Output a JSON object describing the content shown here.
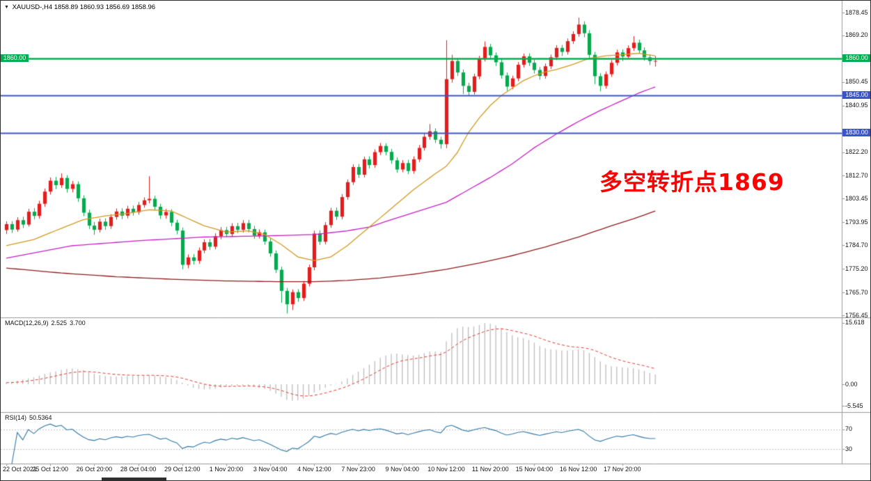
{
  "title_bar": {
    "dropdown_icon": "▼",
    "symbol_period": "XAUUSD-,H4",
    "ohlc": "1858.89 1860.93 1856.69 1858.96"
  },
  "annotation": {
    "text": "多空转折点1869",
    "color": "#ff0000"
  },
  "price_axis": {
    "labels": [
      "1878.45",
      "1869.20",
      "1850.45",
      "1840.95",
      "1822.20",
      "1812.70",
      "1803.45",
      "1793.95",
      "1784.70",
      "1775.20",
      "1765.70",
      "1756.45"
    ]
  },
  "time_axis": {
    "labels": [
      "22 Oct 2021",
      "25 Oct 12:00",
      "26 Oct 20:00",
      "28 Oct 04:00",
      "29 Oct 12:00",
      "1 Nov 20:00",
      "3 Nov 04:00",
      "4 Nov 12:00",
      "7 Nov 23:00",
      "9 Nov 04:00",
      "10 Nov 12:00",
      "11 Nov 20:00",
      "15 Nov 04:00",
      "16 Nov 12:00",
      "17 Nov 20:00"
    ],
    "candles_per_label": 8
  },
  "horizontal_lines": [
    {
      "price": 1860.0,
      "label": "1860.00",
      "color": "#00b050",
      "lw": 2.4,
      "left_badge": true
    },
    {
      "price": 1845.0,
      "label": "1845.00",
      "color": "#3b54c8",
      "lw": 1.8,
      "left_badge": false
    },
    {
      "price": 1830.0,
      "label": "1830.00",
      "color": "#3b54c8",
      "lw": 1.8,
      "left_badge": false
    }
  ],
  "indicators": {
    "macd": {
      "label": "MACD(12,26,9)",
      "value_main": "2.525",
      "value_signal": "3.700",
      "axis_labels": [
        "15.618",
        "0.00",
        "-5.545"
      ],
      "histogram_color": "#bdbdbd",
      "signal_color": "#e23a2e",
      "values": [
        0.4,
        0.6,
        0.9,
        1.2,
        1.5,
        1.8,
        2.2,
        2.6,
        3.0,
        3.3,
        3.7,
        3.9,
        4.0,
        3.8,
        3.6,
        3.1,
        2.7,
        2.3,
        2.1,
        2.0,
        2.0,
        2.0,
        2.1,
        2.1,
        2.2,
        2.3,
        2.3,
        2.2,
        2.0,
        1.8,
        1.5,
        1.1,
        0.4,
        -0.3,
        -0.9,
        -1.2,
        -1.3,
        -1.3,
        -1.1,
        -0.9,
        -0.7,
        -0.5,
        -0.4,
        -0.3,
        -0.4,
        -0.6,
        -0.9,
        -1.2,
        -1.7,
        -2.4,
        -3.2,
        -4.0,
        -4.2,
        -4.1,
        -3.7,
        -3.0,
        -2.1,
        -1.5,
        -0.9,
        -0.3,
        0.1,
        0.7,
        1.5,
        2.4,
        3.2,
        4.1,
        5.0,
        5.9,
        6.7,
        7.3,
        7.7,
        7.8,
        7.6,
        7.4,
        7.3,
        7.5,
        7.9,
        8.3,
        8.4,
        8.2,
        10.9,
        13.1,
        14.3,
        14.7,
        14.6,
        14.7,
        15.1,
        15.6,
        15.4,
        15.0,
        14.3,
        13.3,
        12.5,
        12.0,
        11.8,
        11.3,
        10.6,
        9.8,
        9.2,
        8.9,
        8.8,
        8.6,
        8.6,
        8.7,
        8.9,
        8.7,
        8.0,
        6.9,
        5.8,
        5.0,
        4.6,
        4.5,
        4.3,
        4.2,
        4.1,
        3.8,
        3.4,
        2.9,
        2.5
      ]
    },
    "rsi": {
      "label": "RSI(14)",
      "value": "50.5364",
      "line_color": "#2e78a8",
      "levels": [
        70,
        30
      ],
      "axis_labels": [
        "70",
        "30"
      ]
    }
  },
  "chart_data": {
    "type": "candlestick",
    "symbol": "XAUUSD-",
    "timeframe": "H4",
    "color_convention": "red=up, green=down (CN)",
    "up_color": "#e31d1d",
    "down_color": "#08a84e",
    "ylim": [
      1756.45,
      1878.45
    ],
    "candles": [
      [
        1790.8,
        1794.3,
        1789.2,
        1793.2
      ],
      [
        1793.2,
        1794.4,
        1789.6,
        1791.0
      ],
      [
        1791.0,
        1796.0,
        1790.1,
        1794.8
      ],
      [
        1794.8,
        1796.2,
        1791.6,
        1793.0
      ],
      [
        1793.0,
        1799.4,
        1792.2,
        1798.2
      ],
      [
        1798.2,
        1799.6,
        1795.1,
        1796.5
      ],
      [
        1796.5,
        1802.6,
        1795.4,
        1801.4
      ],
      [
        1801.4,
        1807.5,
        1800.2,
        1806.3
      ],
      [
        1806.3,
        1812.0,
        1805.1,
        1810.7
      ],
      [
        1810.7,
        1812.2,
        1807.3,
        1808.9
      ],
      [
        1808.9,
        1813.6,
        1807.8,
        1811.8
      ],
      [
        1811.8,
        1812.9,
        1805.9,
        1807.4
      ],
      [
        1807.4,
        1810.6,
        1806.0,
        1809.3
      ],
      [
        1809.3,
        1810.4,
        1802.2,
        1803.6
      ],
      [
        1803.6,
        1804.8,
        1796.4,
        1797.8
      ],
      [
        1797.8,
        1799.0,
        1791.2,
        1792.6
      ],
      [
        1792.6,
        1794.1,
        1788.9,
        1790.9
      ],
      [
        1790.9,
        1795.4,
        1789.8,
        1794.2
      ],
      [
        1794.2,
        1795.5,
        1790.9,
        1792.4
      ],
      [
        1792.4,
        1797.2,
        1791.3,
        1796.1
      ],
      [
        1796.1,
        1799.5,
        1795.0,
        1798.3
      ],
      [
        1798.3,
        1799.6,
        1795.2,
        1796.6
      ],
      [
        1796.6,
        1800.6,
        1795.5,
        1799.4
      ],
      [
        1799.4,
        1800.7,
        1796.6,
        1798.0
      ],
      [
        1798.0,
        1802.1,
        1797.0,
        1800.9
      ],
      [
        1800.9,
        1804.0,
        1799.8,
        1802.8
      ],
      [
        1802.8,
        1812.5,
        1801.6,
        1803.4
      ],
      [
        1803.4,
        1804.6,
        1798.8,
        1800.2
      ],
      [
        1800.2,
        1801.4,
        1795.3,
        1796.7
      ],
      [
        1796.7,
        1799.3,
        1795.4,
        1798.1
      ],
      [
        1798.1,
        1799.2,
        1792.4,
        1793.8
      ],
      [
        1793.8,
        1795.0,
        1789.1,
        1790.6
      ],
      [
        1790.6,
        1791.8,
        1775.0,
        1776.8
      ],
      [
        1776.8,
        1781.0,
        1775.4,
        1779.8
      ],
      [
        1779.8,
        1781.1,
        1776.9,
        1778.4
      ],
      [
        1778.4,
        1783.8,
        1777.2,
        1782.6
      ],
      [
        1782.6,
        1787.1,
        1781.5,
        1785.9
      ],
      [
        1785.9,
        1787.2,
        1782.8,
        1784.1
      ],
      [
        1784.1,
        1789.5,
        1783.0,
        1788.3
      ],
      [
        1788.3,
        1792.0,
        1787.1,
        1790.8
      ],
      [
        1790.8,
        1792.1,
        1787.9,
        1789.2
      ],
      [
        1789.2,
        1793.6,
        1788.0,
        1792.4
      ],
      [
        1792.4,
        1793.7,
        1789.6,
        1790.9
      ],
      [
        1790.9,
        1794.8,
        1789.8,
        1793.6
      ],
      [
        1793.6,
        1794.9,
        1789.9,
        1791.2
      ],
      [
        1791.2,
        1792.5,
        1787.3,
        1788.6
      ],
      [
        1788.6,
        1791.1,
        1787.4,
        1789.9
      ],
      [
        1789.9,
        1791.0,
        1784.9,
        1786.2
      ],
      [
        1786.2,
        1787.5,
        1780.1,
        1781.4
      ],
      [
        1781.4,
        1782.6,
        1773.5,
        1774.8
      ],
      [
        1774.8,
        1776.0,
        1761.5,
        1766.3
      ],
      [
        1766.3,
        1767.5,
        1757.2,
        1760.9
      ],
      [
        1760.9,
        1766.9,
        1758.6,
        1765.8
      ],
      [
        1765.8,
        1767.0,
        1761.9,
        1763.4
      ],
      [
        1763.4,
        1770.3,
        1762.2,
        1769.2
      ],
      [
        1769.2,
        1776.9,
        1768.1,
        1775.8
      ],
      [
        1775.8,
        1790.6,
        1774.6,
        1789.4
      ],
      [
        1789.4,
        1790.7,
        1784.8,
        1786.1
      ],
      [
        1786.1,
        1794.0,
        1785.0,
        1792.8
      ],
      [
        1792.8,
        1799.8,
        1791.7,
        1798.6
      ],
      [
        1798.6,
        1799.9,
        1794.9,
        1796.2
      ],
      [
        1796.2,
        1805.3,
        1795.1,
        1804.1
      ],
      [
        1804.1,
        1811.2,
        1803.0,
        1810.1
      ],
      [
        1810.1,
        1817.3,
        1809.0,
        1816.2
      ],
      [
        1816.2,
        1817.4,
        1811.8,
        1813.1
      ],
      [
        1813.1,
        1820.4,
        1812.0,
        1819.3
      ],
      [
        1819.3,
        1820.5,
        1815.6,
        1817.0
      ],
      [
        1817.0,
        1823.3,
        1815.9,
        1822.2
      ],
      [
        1822.2,
        1825.9,
        1821.0,
        1824.7
      ],
      [
        1824.7,
        1825.8,
        1820.9,
        1822.3
      ],
      [
        1822.3,
        1823.5,
        1817.5,
        1818.9
      ],
      [
        1818.9,
        1820.1,
        1813.9,
        1815.2
      ],
      [
        1815.2,
        1819.0,
        1814.1,
        1817.8
      ],
      [
        1817.8,
        1819.1,
        1813.3,
        1814.6
      ],
      [
        1814.6,
        1820.5,
        1813.5,
        1819.3
      ],
      [
        1819.3,
        1825.1,
        1818.2,
        1823.9
      ],
      [
        1823.9,
        1829.6,
        1822.8,
        1828.4
      ],
      [
        1828.4,
        1833.5,
        1827.2,
        1830.6
      ],
      [
        1830.6,
        1831.8,
        1825.9,
        1827.2
      ],
      [
        1827.2,
        1828.4,
        1823.6,
        1825.4
      ],
      [
        1825.4,
        1867.3,
        1823.8,
        1851.6
      ],
      [
        1851.6,
        1861.4,
        1850.2,
        1858.9
      ],
      [
        1858.9,
        1860.1,
        1852.9,
        1854.3
      ],
      [
        1854.3,
        1855.5,
        1845.6,
        1848.9
      ],
      [
        1848.9,
        1850.1,
        1844.8,
        1846.5
      ],
      [
        1846.5,
        1853.8,
        1845.4,
        1852.7
      ],
      [
        1852.7,
        1861.0,
        1851.6,
        1859.8
      ],
      [
        1859.8,
        1866.8,
        1858.7,
        1864.6
      ],
      [
        1864.6,
        1865.8,
        1859.9,
        1861.2
      ],
      [
        1861.2,
        1862.4,
        1856.9,
        1858.4
      ],
      [
        1858.4,
        1859.6,
        1851.8,
        1853.1
      ],
      [
        1853.1,
        1854.3,
        1846.9,
        1848.6
      ],
      [
        1848.6,
        1853.0,
        1847.5,
        1851.9
      ],
      [
        1851.9,
        1858.5,
        1850.8,
        1857.4
      ],
      [
        1857.4,
        1861.9,
        1856.3,
        1860.8
      ],
      [
        1860.8,
        1862.0,
        1856.9,
        1858.2
      ],
      [
        1858.2,
        1859.4,
        1853.9,
        1855.3
      ],
      [
        1855.3,
        1856.5,
        1851.4,
        1852.9
      ],
      [
        1852.9,
        1857.9,
        1851.8,
        1856.8
      ],
      [
        1856.8,
        1861.5,
        1855.7,
        1860.4
      ],
      [
        1860.4,
        1865.3,
        1859.3,
        1864.2
      ],
      [
        1864.2,
        1865.4,
        1860.9,
        1862.6
      ],
      [
        1862.6,
        1868.0,
        1861.5,
        1866.9
      ],
      [
        1866.9,
        1870.9,
        1865.8,
        1869.8
      ],
      [
        1869.8,
        1876.4,
        1868.7,
        1873.6
      ],
      [
        1873.6,
        1874.9,
        1868.5,
        1870.1
      ],
      [
        1870.1,
        1871.3,
        1859.8,
        1861.4
      ],
      [
        1861.4,
        1862.6,
        1849.6,
        1852.8
      ],
      [
        1852.8,
        1854.0,
        1846.7,
        1848.9
      ],
      [
        1848.9,
        1854.7,
        1847.8,
        1853.6
      ],
      [
        1853.6,
        1859.3,
        1852.5,
        1858.2
      ],
      [
        1858.2,
        1863.5,
        1857.1,
        1862.4
      ],
      [
        1862.4,
        1863.6,
        1858.9,
        1860.7
      ],
      [
        1860.7,
        1865.2,
        1859.6,
        1864.1
      ],
      [
        1864.1,
        1868.9,
        1863.0,
        1866.3
      ],
      [
        1866.3,
        1867.5,
        1861.9,
        1863.2
      ],
      [
        1863.2,
        1864.4,
        1859.1,
        1860.4
      ],
      [
        1860.4,
        1861.6,
        1857.3,
        1858.9
      ],
      [
        1858.89,
        1860.93,
        1856.69,
        1858.96
      ]
    ],
    "moving_averages": [
      {
        "name": "ma-slow",
        "color": "#8f1d1d",
        "anchors": [
          [
            0,
            1775.5
          ],
          [
            10,
            1773.5
          ],
          [
            20,
            1772
          ],
          [
            30,
            1771
          ],
          [
            40,
            1770.3
          ],
          [
            50,
            1770
          ],
          [
            56,
            1770
          ],
          [
            62,
            1770.5
          ],
          [
            68,
            1771.5
          ],
          [
            74,
            1773
          ],
          [
            80,
            1775
          ],
          [
            86,
            1777.5
          ],
          [
            92,
            1780.5
          ],
          [
            98,
            1784
          ],
          [
            104,
            1788
          ],
          [
            110,
            1792.5
          ],
          [
            114,
            1795.3
          ],
          [
            118,
            1798.5
          ]
        ]
      },
      {
        "name": "ma-medium",
        "color": "#c81ec8",
        "anchors": [
          [
            0,
            1779.5
          ],
          [
            12,
            1784.5
          ],
          [
            24,
            1786.5
          ],
          [
            36,
            1788
          ],
          [
            48,
            1788.5
          ],
          [
            56,
            1789
          ],
          [
            62,
            1790.5
          ],
          [
            66,
            1792
          ],
          [
            70,
            1795
          ],
          [
            75,
            1798.5
          ],
          [
            80,
            1802
          ],
          [
            84,
            1807
          ],
          [
            88,
            1812
          ],
          [
            92,
            1817.5
          ],
          [
            96,
            1824
          ],
          [
            100,
            1829.5
          ],
          [
            104,
            1834.5
          ],
          [
            108,
            1839
          ],
          [
            112,
            1843
          ],
          [
            115,
            1846
          ],
          [
            118,
            1848.5
          ]
        ]
      },
      {
        "name": "ma-fast",
        "color": "#d29a20",
        "anchors": [
          [
            0,
            1784.5
          ],
          [
            5,
            1787
          ],
          [
            10,
            1791.5
          ],
          [
            14,
            1795
          ],
          [
            18,
            1796.5
          ],
          [
            22,
            1797.5
          ],
          [
            26,
            1799
          ],
          [
            30,
            1798.5
          ],
          [
            33,
            1795.5
          ],
          [
            36,
            1792.5
          ],
          [
            40,
            1790
          ],
          [
            44,
            1790.5
          ],
          [
            47,
            1789
          ],
          [
            50,
            1785
          ],
          [
            53,
            1780
          ],
          [
            56,
            1778.5
          ],
          [
            59,
            1780
          ],
          [
            62,
            1784.5
          ],
          [
            66,
            1792
          ],
          [
            70,
            1799.5
          ],
          [
            74,
            1807
          ],
          [
            78,
            1813.5
          ],
          [
            80,
            1816.5
          ],
          [
            82,
            1822
          ],
          [
            84,
            1830
          ],
          [
            86,
            1836
          ],
          [
            88,
            1841
          ],
          [
            90,
            1845
          ],
          [
            92,
            1848
          ],
          [
            94,
            1851
          ],
          [
            96,
            1853
          ],
          [
            98,
            1854.5
          ],
          [
            100,
            1855.5
          ],
          [
            103,
            1857.5
          ],
          [
            106,
            1860
          ],
          [
            109,
            1861
          ],
          [
            112,
            1861.5
          ],
          [
            115,
            1862
          ],
          [
            118,
            1861
          ]
        ]
      }
    ]
  },
  "scrollbar": {
    "color": "#2f2f2f"
  }
}
